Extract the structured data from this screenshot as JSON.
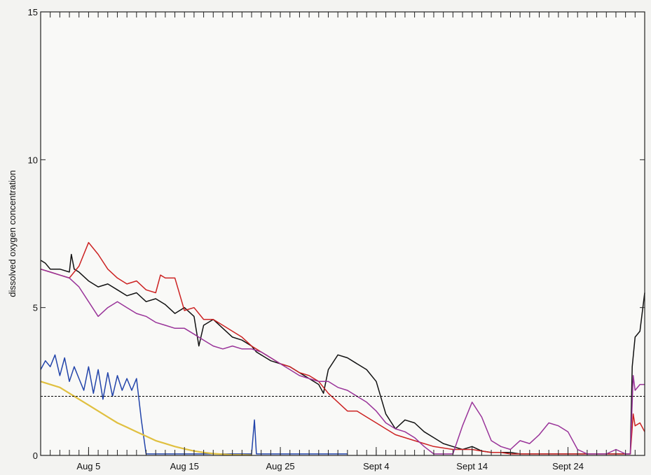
{
  "chart_data": {
    "type": "line",
    "ylabel": "dissolved oxygen concentration",
    "xlabel": "",
    "ylim": [
      0,
      15
    ],
    "xlim": [
      0,
      63
    ],
    "yticks": [
      0,
      5,
      10,
      15
    ],
    "xtick_labels": [
      {
        "x": 5,
        "label": "Aug 5"
      },
      {
        "x": 15,
        "label": "Aug 15"
      },
      {
        "x": 25,
        "label": "Aug 25"
      },
      {
        "x": 35,
        "label": "Sept 4"
      },
      {
        "x": 45,
        "label": "Sept 14"
      },
      {
        "x": 55,
        "label": "Sept 24"
      }
    ],
    "reference_line": {
      "y": 2.0,
      "style": "dashed",
      "color": "#000000"
    },
    "grid": false,
    "series": [
      {
        "color": "#111111",
        "points": [
          [
            0,
            6.6
          ],
          [
            0.5,
            6.5
          ],
          [
            1,
            6.3
          ],
          [
            2,
            6.3
          ],
          [
            3,
            6.2
          ],
          [
            3.2,
            6.8
          ],
          [
            3.5,
            6.3
          ],
          [
            4,
            6.2
          ],
          [
            5,
            5.9
          ],
          [
            6,
            5.7
          ],
          [
            7,
            5.8
          ],
          [
            8,
            5.6
          ],
          [
            9,
            5.4
          ],
          [
            10,
            5.5
          ],
          [
            11,
            5.2
          ],
          [
            12,
            5.3
          ],
          [
            13,
            5.1
          ],
          [
            14,
            4.8
          ],
          [
            15,
            5.0
          ],
          [
            16,
            4.7
          ],
          [
            16.5,
            3.7
          ],
          [
            17,
            4.4
          ],
          [
            18,
            4.6
          ],
          [
            19,
            4.3
          ],
          [
            20,
            4.0
          ],
          [
            21,
            3.9
          ],
          [
            22,
            3.7
          ],
          [
            22.5,
            3.5
          ],
          [
            23,
            3.4
          ],
          [
            24,
            3.2
          ],
          [
            25,
            3.1
          ],
          [
            26,
            3.0
          ],
          [
            27,
            2.8
          ],
          [
            28,
            2.6
          ],
          [
            29,
            2.4
          ],
          [
            29.5,
            2.1
          ],
          [
            30,
            2.9
          ],
          [
            31,
            3.4
          ],
          [
            32,
            3.3
          ],
          [
            33,
            3.1
          ],
          [
            34,
            2.9
          ],
          [
            35,
            2.5
          ],
          [
            36,
            1.4
          ],
          [
            37,
            0.9
          ],
          [
            38,
            1.2
          ],
          [
            39,
            1.1
          ],
          [
            40,
            0.8
          ],
          [
            41,
            0.6
          ],
          [
            42,
            0.4
          ],
          [
            43,
            0.3
          ],
          [
            44,
            0.2
          ],
          [
            45,
            0.3
          ],
          [
            46,
            0.15
          ],
          [
            47,
            0.1
          ],
          [
            48,
            0.1
          ],
          [
            49,
            0.1
          ],
          [
            50,
            0.05
          ],
          [
            51,
            0.05
          ],
          [
            52,
            0.05
          ],
          [
            53,
            0.05
          ],
          [
            54,
            0.05
          ],
          [
            55,
            0.05
          ],
          [
            56,
            0.05
          ],
          [
            57,
            0.05
          ],
          [
            58,
            0.05
          ],
          [
            59,
            0.05
          ],
          [
            60,
            0.05
          ],
          [
            61,
            0.05
          ],
          [
            61.5,
            0.05
          ],
          [
            61.7,
            3.0
          ],
          [
            62,
            4.0
          ],
          [
            62.5,
            4.2
          ],
          [
            63,
            5.5
          ]
        ]
      },
      {
        "color": "#cc2222",
        "points": [
          [
            0,
            6.3
          ],
          [
            1,
            6.2
          ],
          [
            2,
            6.1
          ],
          [
            3,
            6.0
          ],
          [
            4,
            6.4
          ],
          [
            5,
            7.2
          ],
          [
            6,
            6.8
          ],
          [
            7,
            6.3
          ],
          [
            8,
            6.0
          ],
          [
            9,
            5.8
          ],
          [
            10,
            5.9
          ],
          [
            11,
            5.6
          ],
          [
            12,
            5.5
          ],
          [
            12.5,
            6.1
          ],
          [
            13,
            6.0
          ],
          [
            14,
            6.0
          ],
          [
            15,
            4.9
          ],
          [
            16,
            5.0
          ],
          [
            17,
            4.6
          ],
          [
            18,
            4.6
          ],
          [
            19,
            4.4
          ],
          [
            20,
            4.2
          ],
          [
            21,
            4.0
          ],
          [
            22,
            3.7
          ],
          [
            23,
            3.5
          ],
          [
            24,
            3.3
          ],
          [
            25,
            3.1
          ],
          [
            26,
            3.0
          ],
          [
            27,
            2.8
          ],
          [
            28,
            2.7
          ],
          [
            29,
            2.5
          ],
          [
            30,
            2.1
          ],
          [
            31,
            1.8
          ],
          [
            32,
            1.5
          ],
          [
            33,
            1.5
          ],
          [
            34,
            1.3
          ],
          [
            35,
            1.1
          ],
          [
            36,
            0.9
          ],
          [
            37,
            0.7
          ],
          [
            38,
            0.6
          ],
          [
            39,
            0.5
          ],
          [
            40,
            0.4
          ],
          [
            41,
            0.3
          ],
          [
            42,
            0.25
          ],
          [
            43,
            0.2
          ],
          [
            44,
            0.2
          ],
          [
            45,
            0.2
          ],
          [
            46,
            0.15
          ],
          [
            47,
            0.1
          ],
          [
            48,
            0.1
          ],
          [
            49,
            0.05
          ],
          [
            50,
            0.05
          ],
          [
            51,
            0.05
          ],
          [
            52,
            0.05
          ],
          [
            53,
            0.05
          ],
          [
            54,
            0.05
          ],
          [
            55,
            0.05
          ],
          [
            56,
            0.05
          ],
          [
            57,
            0.05
          ],
          [
            58,
            0.05
          ],
          [
            59,
            0.05
          ],
          [
            60,
            0.05
          ],
          [
            61,
            0.05
          ],
          [
            61.5,
            0.05
          ],
          [
            61.8,
            1.4
          ],
          [
            62,
            1.0
          ],
          [
            62.5,
            1.1
          ],
          [
            63,
            0.8
          ]
        ]
      },
      {
        "color": "#993399",
        "points": [
          [
            0,
            6.3
          ],
          [
            1,
            6.2
          ],
          [
            2,
            6.1
          ],
          [
            3,
            6.0
          ],
          [
            4,
            5.7
          ],
          [
            5,
            5.2
          ],
          [
            6,
            4.7
          ],
          [
            7,
            5.0
          ],
          [
            8,
            5.2
          ],
          [
            9,
            5.0
          ],
          [
            10,
            4.8
          ],
          [
            11,
            4.7
          ],
          [
            12,
            4.5
          ],
          [
            13,
            4.4
          ],
          [
            14,
            4.3
          ],
          [
            15,
            4.3
          ],
          [
            16,
            4.1
          ],
          [
            17,
            3.9
          ],
          [
            18,
            3.7
          ],
          [
            19,
            3.6
          ],
          [
            20,
            3.7
          ],
          [
            21,
            3.6
          ],
          [
            22,
            3.6
          ],
          [
            23,
            3.5
          ],
          [
            24,
            3.3
          ],
          [
            25,
            3.1
          ],
          [
            26,
            2.9
          ],
          [
            27,
            2.7
          ],
          [
            28,
            2.6
          ],
          [
            29,
            2.5
          ],
          [
            30,
            2.5
          ],
          [
            31,
            2.3
          ],
          [
            32,
            2.2
          ],
          [
            33,
            2.0
          ],
          [
            34,
            1.8
          ],
          [
            35,
            1.5
          ],
          [
            36,
            1.1
          ],
          [
            37,
            0.9
          ],
          [
            38,
            0.8
          ],
          [
            39,
            0.6
          ],
          [
            40,
            0.3
          ],
          [
            41,
            0.05
          ],
          [
            42,
            0.05
          ],
          [
            43,
            0.05
          ],
          [
            44,
            1.0
          ],
          [
            45,
            1.8
          ],
          [
            46,
            1.3
          ],
          [
            47,
            0.5
          ],
          [
            48,
            0.3
          ],
          [
            49,
            0.2
          ],
          [
            50,
            0.5
          ],
          [
            51,
            0.4
          ],
          [
            52,
            0.7
          ],
          [
            53,
            1.1
          ],
          [
            54,
            1.0
          ],
          [
            55,
            0.8
          ],
          [
            56,
            0.2
          ],
          [
            57,
            0.05
          ],
          [
            58,
            0.05
          ],
          [
            59,
            0.05
          ],
          [
            60,
            0.2
          ],
          [
            61,
            0.05
          ],
          [
            61.5,
            0.05
          ],
          [
            61.8,
            2.7
          ],
          [
            62,
            2.2
          ],
          [
            62.5,
            2.4
          ],
          [
            63,
            2.4
          ]
        ]
      },
      {
        "color": "#2244aa",
        "points": [
          [
            0,
            2.9
          ],
          [
            0.5,
            3.2
          ],
          [
            1,
            3.0
          ],
          [
            1.5,
            3.4
          ],
          [
            2,
            2.7
          ],
          [
            2.5,
            3.3
          ],
          [
            3,
            2.5
          ],
          [
            3.5,
            3.0
          ],
          [
            4,
            2.6
          ],
          [
            4.5,
            2.2
          ],
          [
            5,
            3.0
          ],
          [
            5.5,
            2.1
          ],
          [
            6,
            2.9
          ],
          [
            6.5,
            1.9
          ],
          [
            7,
            2.8
          ],
          [
            7.5,
            2.0
          ],
          [
            8,
            2.7
          ],
          [
            8.5,
            2.2
          ],
          [
            9,
            2.6
          ],
          [
            9.5,
            2.2
          ],
          [
            10,
            2.6
          ],
          [
            10.5,
            1.2
          ],
          [
            11,
            0.05
          ],
          [
            12,
            0.05
          ],
          [
            13,
            0.05
          ],
          [
            14,
            0.05
          ],
          [
            15,
            0.05
          ],
          [
            16,
            0.05
          ],
          [
            17,
            0.05
          ],
          [
            18,
            0.05
          ],
          [
            19,
            0.05
          ],
          [
            20,
            0.05
          ],
          [
            21,
            0.05
          ],
          [
            22,
            0.05
          ],
          [
            22.3,
            1.2
          ],
          [
            22.5,
            0.05
          ],
          [
            23,
            0.05
          ],
          [
            24,
            0.05
          ],
          [
            25,
            0.05
          ],
          [
            26,
            0.05
          ],
          [
            27,
            0.05
          ],
          [
            28,
            0.05
          ],
          [
            29,
            0.05
          ],
          [
            30,
            0.05
          ],
          [
            31,
            0.05
          ],
          [
            32,
            0.05
          ]
        ]
      },
      {
        "color": "#e0c040",
        "points": [
          [
            0,
            2.5
          ],
          [
            1,
            2.4
          ],
          [
            2,
            2.3
          ],
          [
            3,
            2.1
          ],
          [
            4,
            1.9
          ],
          [
            5,
            1.7
          ],
          [
            6,
            1.5
          ],
          [
            7,
            1.3
          ],
          [
            8,
            1.1
          ],
          [
            9,
            0.95
          ],
          [
            10,
            0.8
          ],
          [
            11,
            0.65
          ],
          [
            12,
            0.5
          ],
          [
            13,
            0.4
          ],
          [
            14,
            0.3
          ],
          [
            15,
            0.22
          ],
          [
            16,
            0.15
          ],
          [
            17,
            0.1
          ],
          [
            18,
            0.06
          ],
          [
            19,
            0.04
          ],
          [
            20,
            0.02
          ],
          [
            21,
            0.02
          ],
          [
            22,
            0.01
          ]
        ]
      }
    ]
  }
}
